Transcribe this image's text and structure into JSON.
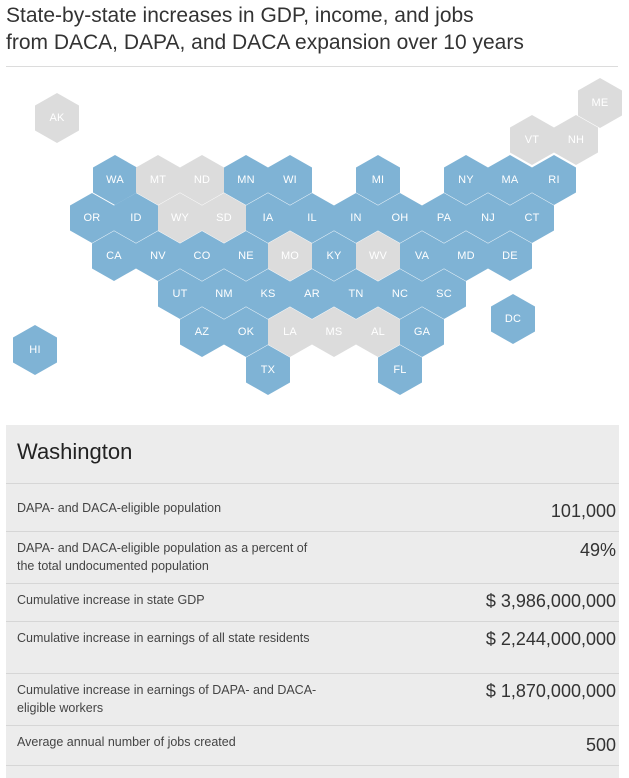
{
  "title": {
    "line1": "State-by-state increases in GDP, income, and jobs",
    "line2": "from DACA, DAPA, and DACA expansion over 10 years"
  },
  "colors": {
    "active": "#7fb3d5",
    "inactive": "#dcdcdc",
    "panel": "#ececec"
  },
  "states": [
    {
      "code": "AK",
      "active": false
    },
    {
      "code": "ME",
      "active": false
    },
    {
      "code": "VT",
      "active": false
    },
    {
      "code": "NH",
      "active": false
    },
    {
      "code": "WA",
      "active": true
    },
    {
      "code": "MT",
      "active": false
    },
    {
      "code": "ND",
      "active": false
    },
    {
      "code": "MN",
      "active": true
    },
    {
      "code": "WI",
      "active": true
    },
    {
      "code": "MI",
      "active": true
    },
    {
      "code": "NY",
      "active": true
    },
    {
      "code": "MA",
      "active": true
    },
    {
      "code": "RI",
      "active": true
    },
    {
      "code": "OR",
      "active": true
    },
    {
      "code": "ID",
      "active": true
    },
    {
      "code": "WY",
      "active": false
    },
    {
      "code": "SD",
      "active": false
    },
    {
      "code": "IA",
      "active": true
    },
    {
      "code": "IL",
      "active": true
    },
    {
      "code": "IN",
      "active": true
    },
    {
      "code": "OH",
      "active": true
    },
    {
      "code": "PA",
      "active": true
    },
    {
      "code": "NJ",
      "active": true
    },
    {
      "code": "CT",
      "active": true
    },
    {
      "code": "CA",
      "active": true
    },
    {
      "code": "NV",
      "active": true
    },
    {
      "code": "CO",
      "active": true
    },
    {
      "code": "NE",
      "active": true
    },
    {
      "code": "MO",
      "active": false
    },
    {
      "code": "KY",
      "active": true
    },
    {
      "code": "WV",
      "active": false
    },
    {
      "code": "VA",
      "active": true
    },
    {
      "code": "MD",
      "active": true
    },
    {
      "code": "DE",
      "active": true
    },
    {
      "code": "UT",
      "active": true
    },
    {
      "code": "NM",
      "active": true
    },
    {
      "code": "KS",
      "active": true
    },
    {
      "code": "AR",
      "active": true
    },
    {
      "code": "TN",
      "active": true
    },
    {
      "code": "NC",
      "active": true
    },
    {
      "code": "SC",
      "active": true
    },
    {
      "code": "DC",
      "active": true
    },
    {
      "code": "AZ",
      "active": true
    },
    {
      "code": "OK",
      "active": true
    },
    {
      "code": "LA",
      "active": false
    },
    {
      "code": "MS",
      "active": false
    },
    {
      "code": "AL",
      "active": false
    },
    {
      "code": "GA",
      "active": true
    },
    {
      "code": "HI",
      "active": true
    },
    {
      "code": "TX",
      "active": true
    },
    {
      "code": "FL",
      "active": true
    }
  ],
  "detail": {
    "state_name": "Washington",
    "rows": [
      {
        "label": "DAPA- and DACA-eligible population",
        "value": "101,000"
      },
      {
        "label": "DAPA- and DACA-eligible population as a percent of the total undocumented population",
        "value": "49%"
      },
      {
        "label": "Cumulative increase in state GDP",
        "value": "$ 3,986,000,000"
      },
      {
        "label": "Cumulative increase in earnings of all state residents",
        "value": "$ 2,244,000,000"
      },
      {
        "label": "Cumulative increase in earnings of DAPA- and DACA-eligible workers",
        "value": "$ 1,870,000,000"
      },
      {
        "label": "Average annual number of jobs created",
        "value": "500"
      }
    ]
  }
}
